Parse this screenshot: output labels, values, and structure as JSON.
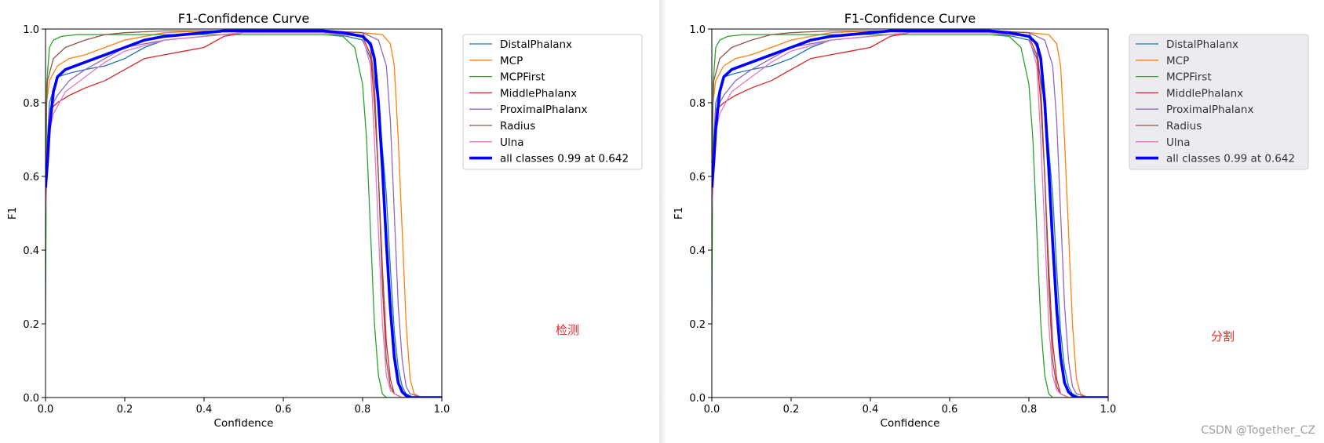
{
  "panels": [
    {
      "overlay_label": "检测",
      "chart_data": {
        "type": "line",
        "title": "F1-Confidence Curve",
        "xlabel": "Confidence",
        "ylabel": "F1",
        "xlim": [
          0,
          1
        ],
        "ylim": [
          0,
          1
        ],
        "xticks": [
          "0.0",
          "0.2",
          "0.4",
          "0.6",
          "0.8",
          "1.0"
        ],
        "yticks": [
          "0.0",
          "0.2",
          "0.4",
          "0.6",
          "0.8",
          "1.0"
        ],
        "grid": false,
        "legend_position": "outside-right",
        "legend_style": "plain",
        "series": [
          {
            "name": "DistalPhalanx",
            "color": "#1f77b4",
            "x": [
              0,
              0.01,
              0.03,
              0.06,
              0.1,
              0.15,
              0.2,
              0.25,
              0.3,
              0.4,
              0.5,
              0.6,
              0.7,
              0.76,
              0.8,
              0.82,
              0.84,
              0.86,
              0.87,
              0.88,
              0.89,
              0.9,
              0.91,
              0.93,
              1.0
            ],
            "y": [
              0.6,
              0.8,
              0.87,
              0.88,
              0.89,
              0.9,
              0.92,
              0.95,
              0.97,
              0.98,
              0.99,
              0.99,
              0.99,
              0.98,
              0.97,
              0.92,
              0.8,
              0.55,
              0.35,
              0.18,
              0.08,
              0.03,
              0.01,
              0.0,
              0.0
            ]
          },
          {
            "name": "MCP",
            "color": "#ff7f0e",
            "x": [
              0,
              0.01,
              0.03,
              0.06,
              0.1,
              0.15,
              0.2,
              0.25,
              0.3,
              0.4,
              0.5,
              0.6,
              0.7,
              0.8,
              0.85,
              0.87,
              0.88,
              0.89,
              0.9,
              0.91,
              0.92,
              0.93,
              0.95,
              1.0
            ],
            "y": [
              0.78,
              0.86,
              0.9,
              0.92,
              0.93,
              0.95,
              0.97,
              0.98,
              0.99,
              0.995,
              0.995,
              0.995,
              0.995,
              0.99,
              0.985,
              0.96,
              0.9,
              0.7,
              0.45,
              0.2,
              0.05,
              0.01,
              0.0,
              0.0
            ]
          },
          {
            "name": "MCPFirst",
            "color": "#2ca02c",
            "x": [
              0,
              0.003,
              0.01,
              0.02,
              0.04,
              0.08,
              0.15,
              0.3,
              0.5,
              0.7,
              0.75,
              0.78,
              0.8,
              0.81,
              0.82,
              0.83,
              0.84,
              0.85,
              0.86,
              1.0
            ],
            "y": [
              0.2,
              0.85,
              0.95,
              0.97,
              0.98,
              0.985,
              0.985,
              0.985,
              0.985,
              0.985,
              0.98,
              0.95,
              0.85,
              0.7,
              0.45,
              0.2,
              0.06,
              0.01,
              0.0,
              0.0
            ]
          },
          {
            "name": "MiddlePhalanx",
            "color": "#d62728",
            "x": [
              0,
              0.01,
              0.03,
              0.06,
              0.1,
              0.15,
              0.2,
              0.25,
              0.3,
              0.35,
              0.4,
              0.45,
              0.5,
              0.6,
              0.7,
              0.8,
              0.82,
              0.83,
              0.84,
              0.85,
              0.86,
              0.87,
              0.88,
              0.9,
              1.0
            ],
            "y": [
              0.62,
              0.78,
              0.8,
              0.82,
              0.84,
              0.86,
              0.89,
              0.92,
              0.93,
              0.94,
              0.95,
              0.98,
              0.99,
              0.99,
              0.99,
              0.98,
              0.93,
              0.8,
              0.6,
              0.35,
              0.15,
              0.05,
              0.01,
              0.0,
              0.0
            ]
          },
          {
            "name": "ProximalPhalanx",
            "color": "#9467bd",
            "x": [
              0,
              0.01,
              0.03,
              0.06,
              0.1,
              0.15,
              0.2,
              0.25,
              0.3,
              0.4,
              0.5,
              0.6,
              0.7,
              0.8,
              0.84,
              0.86,
              0.87,
              0.88,
              0.89,
              0.9,
              0.91,
              0.92,
              0.95,
              1.0
            ],
            "y": [
              0.6,
              0.78,
              0.82,
              0.86,
              0.89,
              0.92,
              0.95,
              0.96,
              0.97,
              0.98,
              0.99,
              0.995,
              0.995,
              0.99,
              0.97,
              0.9,
              0.75,
              0.5,
              0.25,
              0.1,
              0.03,
              0.01,
              0.0,
              0.0
            ]
          },
          {
            "name": "Radius",
            "color": "#8c564b",
            "x": [
              0,
              0.005,
              0.02,
              0.05,
              0.1,
              0.15,
              0.2,
              0.3,
              0.4,
              0.5,
              0.6,
              0.7,
              0.8,
              0.82,
              0.83,
              0.84,
              0.85,
              0.86,
              0.87,
              0.88,
              0.9,
              1.0
            ],
            "y": [
              0.7,
              0.86,
              0.92,
              0.95,
              0.97,
              0.985,
              0.99,
              0.995,
              0.995,
              0.995,
              0.995,
              0.995,
              0.99,
              0.95,
              0.85,
              0.6,
              0.3,
              0.1,
              0.03,
              0.01,
              0.0,
              0.0
            ]
          },
          {
            "name": "Ulna",
            "color": "#e377c2",
            "x": [
              0,
              0.01,
              0.02,
              0.05,
              0.1,
              0.15,
              0.2,
              0.3,
              0.4,
              0.5,
              0.6,
              0.7,
              0.8,
              0.82,
              0.83,
              0.84,
              0.85,
              0.86,
              0.87,
              0.88,
              0.9,
              1.0
            ],
            "y": [
              0.5,
              0.72,
              0.77,
              0.83,
              0.87,
              0.91,
              0.94,
              0.97,
              0.98,
              0.99,
              0.99,
              0.99,
              0.98,
              0.9,
              0.7,
              0.45,
              0.2,
              0.06,
              0.02,
              0.01,
              0.0,
              0.0
            ]
          },
          {
            "name": "all classes 0.99 at 0.642",
            "color": "#0000ff",
            "bold": true,
            "x": [
              0,
              0.005,
              0.01,
              0.02,
              0.03,
              0.05,
              0.1,
              0.15,
              0.2,
              0.25,
              0.3,
              0.35,
              0.4,
              0.45,
              0.5,
              0.6,
              0.642,
              0.7,
              0.75,
              0.8,
              0.82,
              0.83,
              0.84,
              0.85,
              0.86,
              0.87,
              0.88,
              0.89,
              0.9,
              0.91,
              0.92,
              0.95,
              1.0
            ],
            "y": [
              0.57,
              0.64,
              0.73,
              0.83,
              0.87,
              0.89,
              0.91,
              0.93,
              0.95,
              0.97,
              0.98,
              0.985,
              0.99,
              0.995,
              0.995,
              0.995,
              0.995,
              0.995,
              0.99,
              0.98,
              0.96,
              0.92,
              0.8,
              0.62,
              0.42,
              0.24,
              0.11,
              0.04,
              0.015,
              0.005,
              0.0,
              0.0,
              0.0
            ]
          }
        ]
      }
    },
    {
      "overlay_label": "分割",
      "chart_data": {
        "type": "line",
        "title": "F1-Confidence Curve",
        "xlabel": "Confidence",
        "ylabel": "F1",
        "xlim": [
          0,
          1
        ],
        "ylim": [
          0,
          1
        ],
        "xticks": [
          "0.0",
          "0.2",
          "0.4",
          "0.6",
          "0.8",
          "1.0"
        ],
        "yticks": [
          "0.0",
          "0.2",
          "0.4",
          "0.6",
          "0.8",
          "1.0"
        ],
        "grid": false,
        "legend_position": "outside-right",
        "legend_style": "shaded",
        "series": [
          {
            "name": "DistalPhalanx",
            "color": "#1f77b4",
            "x": [
              0,
              0.01,
              0.03,
              0.06,
              0.1,
              0.15,
              0.2,
              0.25,
              0.3,
              0.4,
              0.5,
              0.6,
              0.7,
              0.76,
              0.8,
              0.82,
              0.84,
              0.86,
              0.87,
              0.88,
              0.89,
              0.9,
              0.91,
              0.93,
              1.0
            ],
            "y": [
              0.6,
              0.8,
              0.87,
              0.88,
              0.89,
              0.9,
              0.92,
              0.95,
              0.97,
              0.98,
              0.99,
              0.99,
              0.99,
              0.98,
              0.97,
              0.92,
              0.8,
              0.55,
              0.35,
              0.18,
              0.08,
              0.03,
              0.01,
              0.0,
              0.0
            ]
          },
          {
            "name": "MCP",
            "color": "#ff7f0e",
            "x": [
              0,
              0.01,
              0.03,
              0.06,
              0.1,
              0.15,
              0.2,
              0.25,
              0.3,
              0.4,
              0.5,
              0.6,
              0.7,
              0.8,
              0.85,
              0.87,
              0.88,
              0.89,
              0.9,
              0.91,
              0.92,
              0.93,
              0.95,
              1.0
            ],
            "y": [
              0.78,
              0.86,
              0.9,
              0.92,
              0.93,
              0.95,
              0.97,
              0.98,
              0.99,
              0.995,
              0.995,
              0.995,
              0.995,
              0.99,
              0.985,
              0.96,
              0.9,
              0.7,
              0.45,
              0.2,
              0.05,
              0.01,
              0.0,
              0.0
            ]
          },
          {
            "name": "MCPFirst",
            "color": "#2ca02c",
            "x": [
              0,
              0.003,
              0.01,
              0.02,
              0.04,
              0.08,
              0.15,
              0.3,
              0.5,
              0.7,
              0.75,
              0.78,
              0.8,
              0.81,
              0.82,
              0.83,
              0.84,
              0.85,
              0.86,
              1.0
            ],
            "y": [
              0.2,
              0.85,
              0.95,
              0.97,
              0.98,
              0.985,
              0.985,
              0.985,
              0.985,
              0.985,
              0.98,
              0.95,
              0.85,
              0.7,
              0.45,
              0.2,
              0.06,
              0.01,
              0.0,
              0.0
            ]
          },
          {
            "name": "MiddlePhalanx",
            "color": "#d62728",
            "x": [
              0,
              0.01,
              0.03,
              0.06,
              0.1,
              0.15,
              0.2,
              0.25,
              0.3,
              0.35,
              0.4,
              0.45,
              0.5,
              0.6,
              0.7,
              0.8,
              0.82,
              0.83,
              0.84,
              0.85,
              0.86,
              0.87,
              0.88,
              0.9,
              1.0
            ],
            "y": [
              0.62,
              0.78,
              0.8,
              0.82,
              0.84,
              0.86,
              0.89,
              0.92,
              0.93,
              0.94,
              0.95,
              0.98,
              0.99,
              0.99,
              0.99,
              0.98,
              0.93,
              0.8,
              0.6,
              0.35,
              0.15,
              0.05,
              0.01,
              0.0,
              0.0
            ]
          },
          {
            "name": "ProximalPhalanx",
            "color": "#9467bd",
            "x": [
              0,
              0.01,
              0.03,
              0.06,
              0.1,
              0.15,
              0.2,
              0.25,
              0.3,
              0.4,
              0.5,
              0.6,
              0.7,
              0.8,
              0.84,
              0.86,
              0.87,
              0.88,
              0.89,
              0.9,
              0.91,
              0.92,
              0.95,
              1.0
            ],
            "y": [
              0.6,
              0.78,
              0.82,
              0.86,
              0.89,
              0.92,
              0.95,
              0.96,
              0.97,
              0.98,
              0.99,
              0.995,
              0.995,
              0.99,
              0.97,
              0.9,
              0.75,
              0.5,
              0.25,
              0.1,
              0.03,
              0.01,
              0.0,
              0.0
            ]
          },
          {
            "name": "Radius",
            "color": "#8c564b",
            "x": [
              0,
              0.005,
              0.02,
              0.05,
              0.1,
              0.15,
              0.2,
              0.3,
              0.4,
              0.5,
              0.6,
              0.7,
              0.8,
              0.82,
              0.83,
              0.84,
              0.85,
              0.86,
              0.87,
              0.88,
              0.9,
              1.0
            ],
            "y": [
              0.7,
              0.86,
              0.92,
              0.95,
              0.97,
              0.985,
              0.99,
              0.995,
              0.995,
              0.995,
              0.995,
              0.995,
              0.99,
              0.95,
              0.85,
              0.6,
              0.3,
              0.1,
              0.03,
              0.01,
              0.0,
              0.0
            ]
          },
          {
            "name": "Ulna",
            "color": "#e377c2",
            "x": [
              0,
              0.01,
              0.02,
              0.05,
              0.1,
              0.15,
              0.2,
              0.3,
              0.4,
              0.5,
              0.6,
              0.7,
              0.8,
              0.82,
              0.83,
              0.84,
              0.85,
              0.86,
              0.87,
              0.88,
              0.9,
              1.0
            ],
            "y": [
              0.5,
              0.72,
              0.77,
              0.83,
              0.87,
              0.91,
              0.94,
              0.97,
              0.98,
              0.99,
              0.99,
              0.99,
              0.98,
              0.9,
              0.7,
              0.45,
              0.2,
              0.06,
              0.02,
              0.01,
              0.0,
              0.0
            ]
          },
          {
            "name": "all classes 0.99 at 0.642",
            "color": "#0000ff",
            "bold": true,
            "x": [
              0,
              0.005,
              0.01,
              0.02,
              0.03,
              0.05,
              0.1,
              0.15,
              0.2,
              0.25,
              0.3,
              0.35,
              0.4,
              0.45,
              0.5,
              0.6,
              0.642,
              0.7,
              0.75,
              0.8,
              0.82,
              0.83,
              0.84,
              0.85,
              0.86,
              0.87,
              0.88,
              0.89,
              0.9,
              0.91,
              0.92,
              0.95,
              1.0
            ],
            "y": [
              0.57,
              0.64,
              0.73,
              0.83,
              0.87,
              0.89,
              0.91,
              0.93,
              0.95,
              0.97,
              0.98,
              0.985,
              0.99,
              0.995,
              0.995,
              0.995,
              0.995,
              0.995,
              0.99,
              0.98,
              0.96,
              0.92,
              0.8,
              0.62,
              0.42,
              0.24,
              0.11,
              0.04,
              0.015,
              0.005,
              0.0,
              0.0,
              0.0
            ]
          }
        ]
      }
    }
  ],
  "watermark": "CSDN @Together_CZ"
}
